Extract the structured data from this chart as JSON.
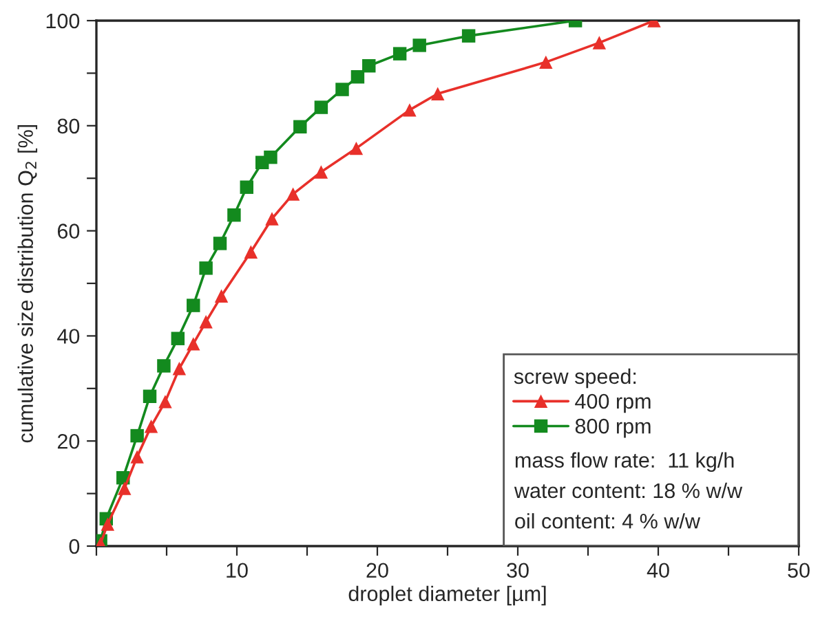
{
  "chart_data": {
    "type": "line",
    "xlabel": "droplet diameter [µm]",
    "ylabel": "cumulative size distribution Q$_{2}$ [%]",
    "legend_title": "screw speed:",
    "annotations": [
      "mass flow rate:  11 kg/h",
      "water content: 18 % w/w",
      "oil content: 4 % w/w"
    ],
    "series": [
      {
        "name": "400 rpm",
        "color": "#e8302a",
        "marker": "triangle",
        "x": [
          0.3,
          0.8,
          2.0,
          2.9,
          3.9,
          4.9,
          5.9,
          6.9,
          7.8,
          8.9,
          11.0,
          12.5,
          14.0,
          16.0,
          18.5,
          22.3,
          24.3,
          32.0,
          35.8,
          39.7
        ],
        "values": [
          0.5,
          4.2,
          11,
          17,
          22.8,
          27.5,
          33.8,
          38.5,
          42.7,
          47.6,
          56,
          62.3,
          67,
          71.2,
          75.7,
          83,
          86.1,
          92.1,
          95.8,
          100
        ]
      },
      {
        "name": "800 rpm",
        "color": "#138a1e",
        "marker": "square",
        "x": [
          0.3,
          0.7,
          1.9,
          2.9,
          3.8,
          4.8,
          5.8,
          6.9,
          7.8,
          8.8,
          9.8,
          10.7,
          11.8,
          12.4,
          14.5,
          16.0,
          17.5,
          18.6,
          19.4,
          21.6,
          23.0,
          26.5,
          34.1
        ],
        "values": [
          1,
          5.2,
          13,
          21,
          28.5,
          34.3,
          39.5,
          45.8,
          52.9,
          57.6,
          63,
          68.3,
          73,
          74,
          79.8,
          83.5,
          86.9,
          89.3,
          91.4,
          93.7,
          95.3,
          97.1,
          100
        ]
      }
    ],
    "xlim": [
      0,
      50
    ],
    "xticks": [
      {
        "value": 0,
        "label": null
      },
      {
        "value": 5,
        "label": null
      },
      10,
      {
        "value": 15,
        "label": null
      },
      20,
      {
        "value": 25,
        "label": null
      },
      30,
      {
        "value": 35,
        "label": null
      },
      40,
      {
        "value": 45,
        "label": null
      },
      50
    ],
    "ylim": [
      0,
      100
    ],
    "yticks": [
      0,
      {
        "value": 10,
        "label": null
      },
      20,
      {
        "value": 30,
        "label": null
      },
      40,
      {
        "value": 50,
        "label": null
      },
      60,
      {
        "value": 70,
        "label": null
      },
      80,
      {
        "value": 90,
        "label": null
      },
      100
    ],
    "legend": "bottom right",
    "grid": false,
    "line_style": "solid"
  }
}
